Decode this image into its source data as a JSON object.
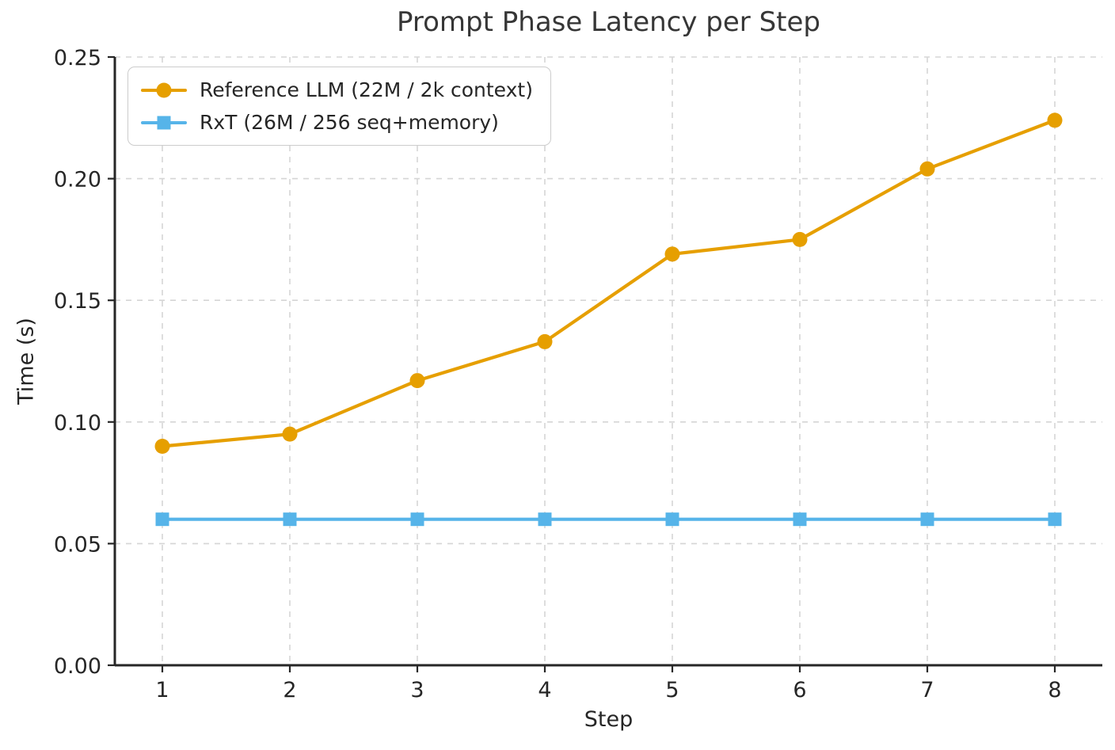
{
  "chart_data": {
    "type": "line",
    "title": "Prompt Phase Latency per Step",
    "xlabel": "Step",
    "ylabel": "Time (s)",
    "x": [
      1,
      2,
      3,
      4,
      5,
      6,
      7,
      8
    ],
    "xtick_labels": [
      "1",
      "2",
      "3",
      "4",
      "5",
      "6",
      "7",
      "8"
    ],
    "ytick_values": [
      0.0,
      0.05,
      0.1,
      0.15,
      0.2,
      0.25
    ],
    "ytick_labels": [
      "0.00",
      "0.05",
      "0.10",
      "0.15",
      "0.20",
      "0.25"
    ],
    "ylim": [
      0.0,
      0.25
    ],
    "grid": true,
    "grid_style": "dashed",
    "legend_position": "upper-left",
    "series": [
      {
        "name": "Reference LLM (22M / 2k context)",
        "color": "#E69F00",
        "marker": "circle",
        "values": [
          0.09,
          0.095,
          0.117,
          0.133,
          0.169,
          0.175,
          0.204,
          0.224
        ]
      },
      {
        "name": "RxT (26M / 256 seq+memory)",
        "color": "#56B4E9",
        "marker": "square",
        "values": [
          0.06,
          0.06,
          0.06,
          0.06,
          0.06,
          0.06,
          0.06,
          0.06
        ]
      }
    ],
    "colors": {
      "axis": "#262626",
      "tick_text": "#262626",
      "grid": "#d5d5d5",
      "title": "#363636",
      "legend_border": "#cccccc",
      "background": "#ffffff"
    }
  }
}
